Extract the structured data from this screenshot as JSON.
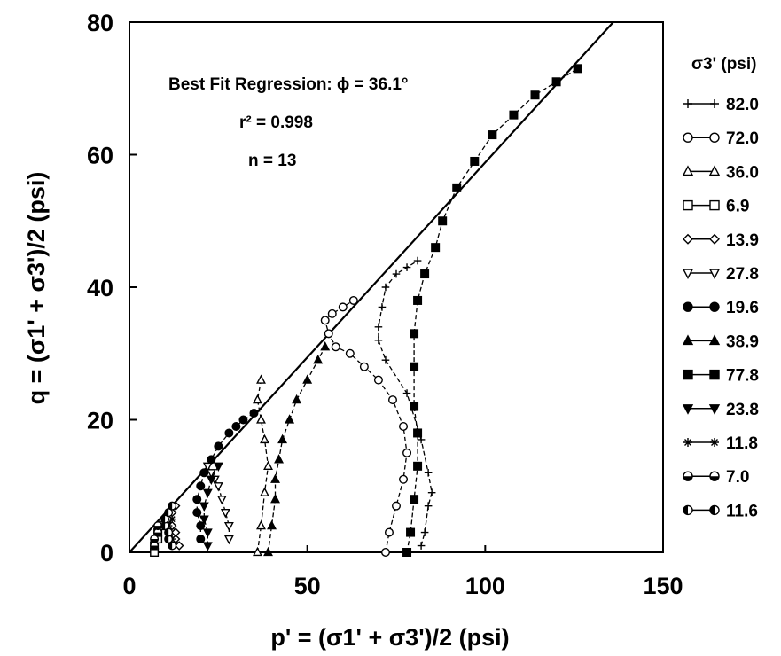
{
  "chart_data": {
    "type": "line",
    "xlabel": "p' = (σ1' + σ3')/2  (psi)",
    "ylabel": "q = (σ1' + σ3')/2  (psi)",
    "xlim": [
      0,
      150
    ],
    "ylim": [
      0,
      80
    ],
    "xticks": [
      "0",
      "50",
      "100",
      "150"
    ],
    "yticks": [
      "0",
      "20",
      "40",
      "60",
      "80"
    ],
    "grid": false,
    "legend_position": "right",
    "legend_title": "σ3' (psi)",
    "annotations": {
      "regression": "Best Fit Regression:  ϕ = 36.1°",
      "r2": "r² = 0.998",
      "n": "n = 13"
    },
    "fit_line": {
      "name": "Best Fit Regression",
      "x": [
        0,
        136
      ],
      "y": [
        0,
        80
      ]
    },
    "series": [
      {
        "name": "82.0",
        "marker": "plus",
        "line": "dashed",
        "x": [
          82,
          83,
          84,
          85,
          84,
          82,
          78,
          72,
          70,
          70,
          71,
          72,
          75,
          78,
          81
        ],
        "y": [
          1,
          3,
          7,
          9,
          12,
          17,
          24,
          29,
          32,
          34,
          37,
          40,
          42,
          43,
          44
        ]
      },
      {
        "name": "72.0",
        "marker": "circle-open",
        "line": "dashed",
        "x": [
          72,
          73,
          75,
          77,
          78,
          77,
          74,
          70,
          66,
          62,
          58,
          56,
          55,
          57,
          60,
          63
        ],
        "y": [
          0,
          3,
          7,
          11,
          15,
          19,
          23,
          26,
          28,
          30,
          31,
          33,
          35,
          36,
          37,
          38
        ]
      },
      {
        "name": "36.0",
        "marker": "triangle-open",
        "line": "dashed",
        "x": [
          36,
          37,
          38,
          39,
          38,
          37,
          36,
          37
        ],
        "y": [
          0,
          4,
          9,
          13,
          17,
          20,
          23,
          26
        ]
      },
      {
        "name": "6.9",
        "marker": "square-open",
        "line": "dashed",
        "x": [
          7,
          7,
          8,
          8,
          9
        ],
        "y": [
          0,
          1,
          2,
          3,
          4
        ]
      },
      {
        "name": "13.9",
        "marker": "diamond-open",
        "line": "dashed",
        "x": [
          14,
          13,
          13,
          12,
          11,
          12,
          13
        ],
        "y": [
          1,
          2,
          3,
          4,
          5,
          6,
          7
        ]
      },
      {
        "name": "27.8",
        "marker": "triangle-down-open",
        "line": "dashed",
        "x": [
          28,
          28,
          27,
          26,
          25,
          24,
          23,
          22
        ],
        "y": [
          2,
          4,
          6,
          8,
          10,
          11,
          12,
          13
        ]
      },
      {
        "name": "19.6",
        "marker": "circle-filled",
        "line": "dashed",
        "x": [
          20,
          20,
          19,
          19,
          20,
          21,
          23,
          25,
          28,
          30,
          32,
          35
        ],
        "y": [
          2,
          4,
          6,
          8,
          10,
          12,
          14,
          16,
          18,
          19,
          20,
          21
        ]
      },
      {
        "name": "38.9",
        "marker": "triangle-filled",
        "line": "dashed",
        "x": [
          39,
          40,
          41,
          41,
          42,
          43,
          45,
          47,
          50,
          53,
          55
        ],
        "y": [
          0,
          4,
          8,
          11,
          14,
          17,
          20,
          23,
          26,
          29,
          31
        ]
      },
      {
        "name": "77.8",
        "marker": "square-filled",
        "line": "dashed",
        "x": [
          78,
          79,
          80,
          81,
          81,
          80,
          80,
          80,
          81,
          83,
          86,
          88,
          92,
          97,
          102,
          108,
          114,
          120,
          126
        ],
        "y": [
          0,
          3,
          8,
          13,
          18,
          22,
          28,
          33,
          38,
          42,
          46,
          50,
          55,
          59,
          63,
          66,
          69,
          71,
          73
        ]
      },
      {
        "name": "23.8",
        "marker": "triangle-down-filled",
        "line": "dashed",
        "x": [
          22,
          22,
          21,
          21,
          22,
          23,
          25
        ],
        "y": [
          1,
          3,
          5,
          7,
          9,
          11,
          13
        ]
      },
      {
        "name": "11.8",
        "marker": "asterisk",
        "line": "dashed",
        "x": [
          12,
          12,
          11,
          11,
          12
        ],
        "y": [
          1,
          2,
          3,
          4,
          5
        ]
      },
      {
        "name": "7.0",
        "marker": "circle-half-bottom",
        "line": "dashed",
        "x": [
          7,
          7,
          8,
          8
        ],
        "y": [
          1,
          2,
          3,
          4
        ]
      },
      {
        "name": "11.6",
        "marker": "circle-half-left",
        "line": "dashed",
        "x": [
          12,
          11,
          11,
          10,
          10,
          11,
          12
        ],
        "y": [
          1,
          2,
          3,
          4,
          5,
          6,
          7
        ]
      }
    ]
  }
}
